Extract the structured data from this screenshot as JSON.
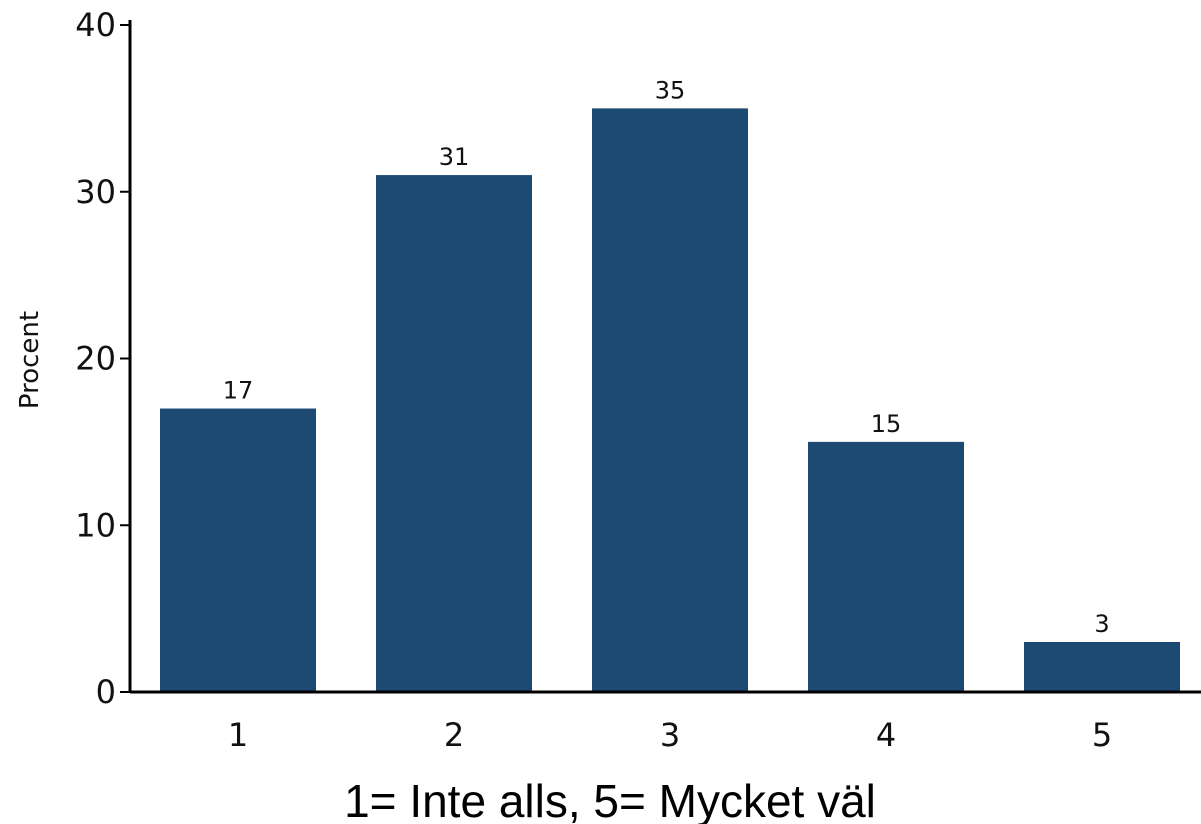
{
  "chart_data": {
    "type": "bar",
    "categories": [
      "1",
      "2",
      "3",
      "4",
      "5"
    ],
    "values": [
      17,
      31,
      35,
      15,
      3
    ],
    "data_labels": [
      "17",
      "31",
      "35",
      "15",
      "3"
    ],
    "title": "",
    "xlabel": "1= Inte alls, 5= Mycket väl",
    "ylabel": "Procent",
    "ylim": [
      0,
      40
    ],
    "yticks": [
      0,
      10,
      20,
      30,
      40
    ],
    "ytick_labels": [
      "0",
      "10",
      "20",
      "30",
      "40"
    ],
    "grid": false,
    "legend": "none",
    "colors": {
      "bar": "#1c4a72",
      "axis": "#000000"
    }
  }
}
